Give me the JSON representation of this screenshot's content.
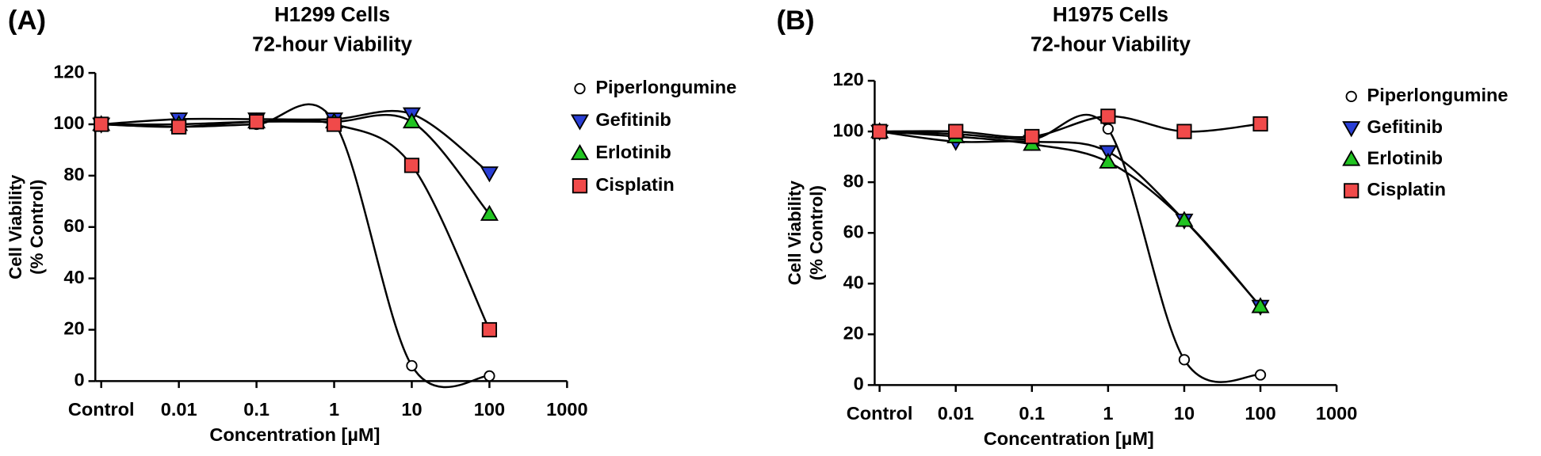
{
  "chart_data": [
    {
      "type": "scatter",
      "panel": "(A)",
      "title": [
        "H1299 Cells",
        "72-hour Viability"
      ],
      "x_label": "Concentration [µM]",
      "y_label": [
        "Cell Viability",
        "(% Control)"
      ],
      "categories": [
        "Control",
        "0.01",
        "0.1",
        "1",
        "10",
        "100",
        "1000"
      ],
      "ylim": [
        0,
        120
      ],
      "yticks": [
        0,
        20,
        40,
        60,
        80,
        100,
        120
      ],
      "series": [
        {
          "name": "Piperlongumine",
          "color": "#ffffff",
          "marker": "circle",
          "values": [
            100,
            99,
            100,
            101,
            6,
            2,
            null
          ]
        },
        {
          "name": "Gefitinib",
          "color": "#2a3fd6",
          "marker": "triangle-down",
          "values": [
            100,
            102,
            102,
            102,
            104,
            81,
            null
          ]
        },
        {
          "name": "Erlotinib",
          "color": "#22c422",
          "marker": "triangle-up",
          "values": [
            100,
            100,
            101,
            101,
            101,
            65,
            null
          ]
        },
        {
          "name": "Cisplatin",
          "color": "#f04a4a",
          "marker": "square",
          "values": [
            100,
            99,
            101,
            100,
            84,
            20,
            null
          ]
        }
      ]
    },
    {
      "type": "scatter",
      "panel": "(B)",
      "title": [
        "H1975 Cells",
        "72-hour Viability"
      ],
      "x_label": "Concentration [µM]",
      "y_label": [
        "Cell Viability",
        "(% Control)"
      ],
      "categories": [
        "Control",
        "0.01",
        "0.1",
        "1",
        "10",
        "100",
        "1000"
      ],
      "ylim": [
        0,
        120
      ],
      "yticks": [
        0,
        20,
        40,
        60,
        80,
        100,
        120
      ],
      "series": [
        {
          "name": "Piperlongumine",
          "color": "#ffffff",
          "marker": "circle",
          "values": [
            100,
            99,
            97,
            101,
            10,
            4,
            null
          ]
        },
        {
          "name": "Gefitinib",
          "color": "#2a3fd6",
          "marker": "triangle-down",
          "values": [
            100,
            96,
            96,
            92,
            65,
            31,
            null
          ]
        },
        {
          "name": "Erlotinib",
          "color": "#22c422",
          "marker": "triangle-up",
          "values": [
            100,
            98,
            95,
            88,
            65,
            31,
            null
          ]
        },
        {
          "name": "Cisplatin",
          "color": "#f04a4a",
          "marker": "square",
          "values": [
            100,
            100,
            98,
            106,
            100,
            103,
            null
          ]
        }
      ]
    }
  ]
}
